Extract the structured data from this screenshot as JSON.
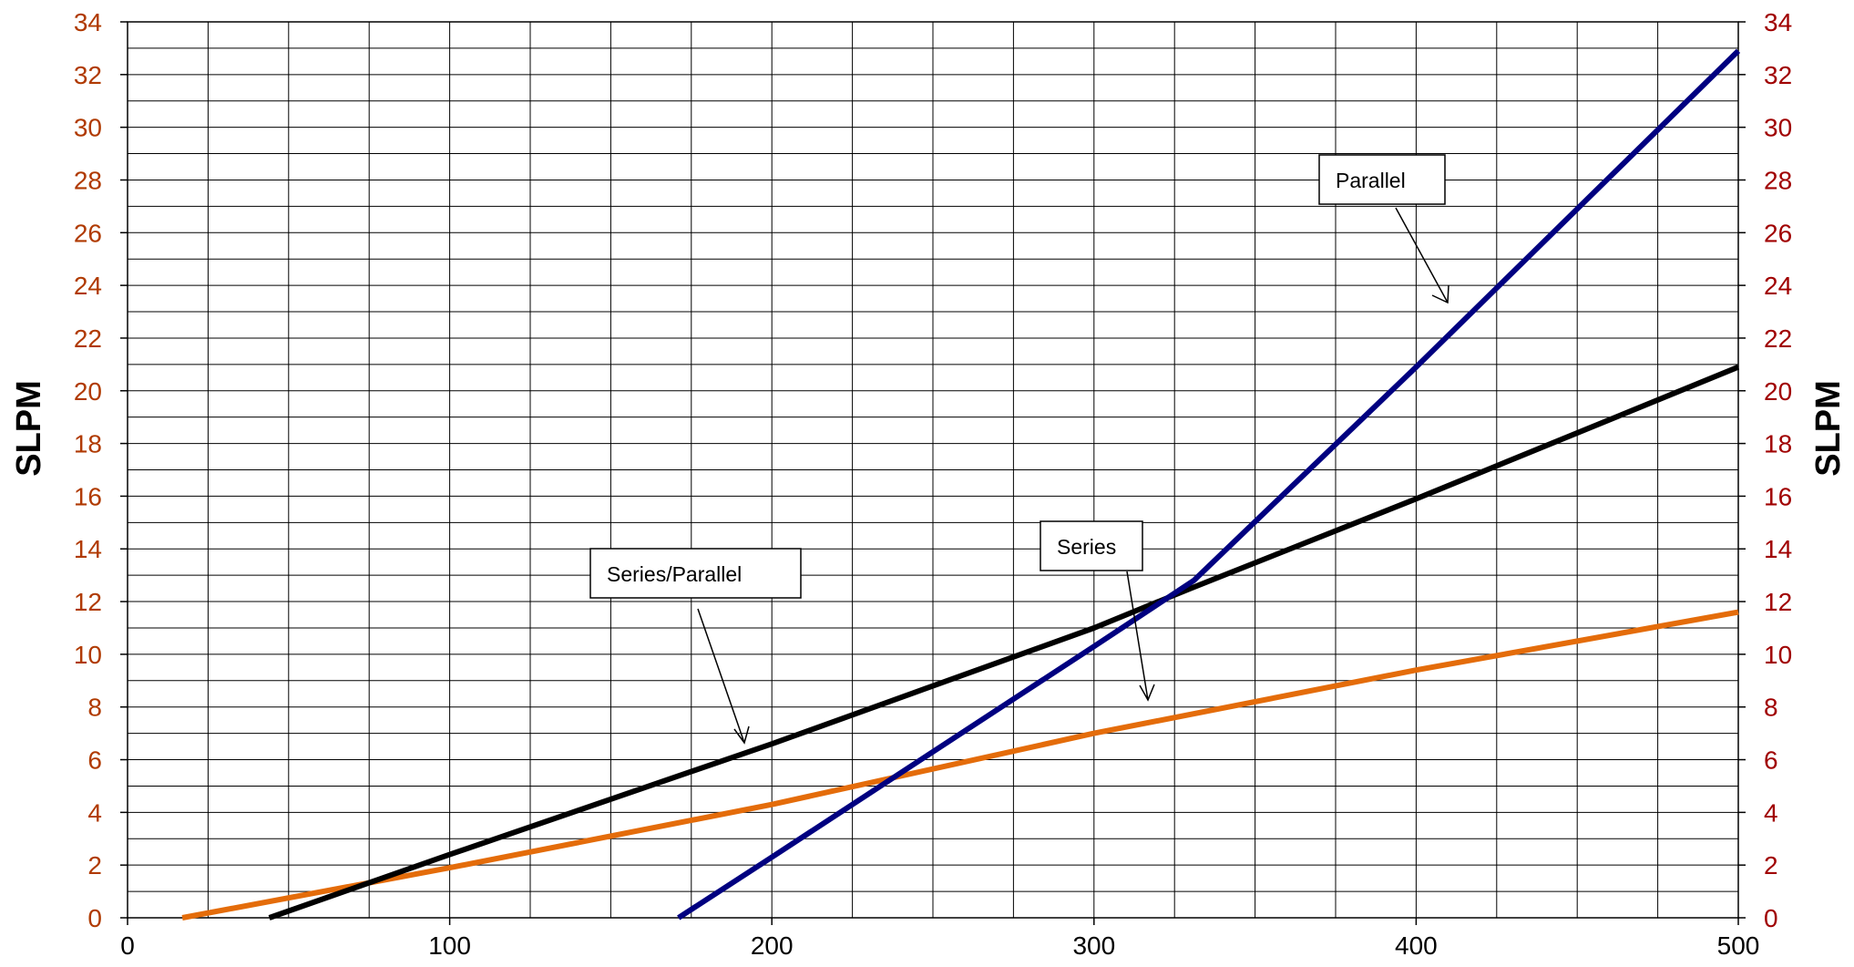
{
  "chart_data": {
    "type": "line",
    "x": [
      0,
      500
    ],
    "xlim": [
      0,
      500
    ],
    "ylim": [
      0,
      34
    ],
    "x_ticks": [
      0,
      100,
      200,
      300,
      400,
      500
    ],
    "y_ticks": [
      0,
      2,
      4,
      6,
      8,
      10,
      12,
      14,
      16,
      18,
      20,
      22,
      24,
      26,
      28,
      30,
      32,
      34
    ],
    "ylabel_left": "SLPM",
    "ylabel_right": "SLPM",
    "grid": true,
    "series": [
      {
        "name": "Series/Parallel",
        "color": "#000000",
        "points": [
          [
            44,
            0
          ],
          [
            100,
            2.4
          ],
          [
            200,
            6.6
          ],
          [
            300,
            11
          ],
          [
            330,
            12.5
          ],
          [
            400,
            15.9
          ],
          [
            500,
            20.9
          ]
        ]
      },
      {
        "name": "Series",
        "color": "#e46c0a",
        "points": [
          [
            17,
            0
          ],
          [
            100,
            1.9
          ],
          [
            200,
            4.3
          ],
          [
            300,
            7
          ],
          [
            400,
            9.4
          ],
          [
            500,
            11.6
          ]
        ]
      },
      {
        "name": "Parallel",
        "color": "#000080",
        "points": [
          [
            171,
            0
          ],
          [
            200,
            2.3
          ],
          [
            250,
            6.3
          ],
          [
            300,
            10.3
          ],
          [
            331,
            12.8
          ],
          [
            400,
            20.9
          ],
          [
            500,
            32.9
          ]
        ]
      }
    ],
    "annotations": [
      {
        "text": "Parallel",
        "target_series": "Parallel"
      },
      {
        "text": "Series",
        "target_series": "Series"
      },
      {
        "text": "Series/Parallel",
        "target_series": "Series/Parallel"
      }
    ]
  },
  "colors": {
    "tick_left": "#b03a00",
    "tick_right": "#a00000",
    "grid": "#000000"
  }
}
